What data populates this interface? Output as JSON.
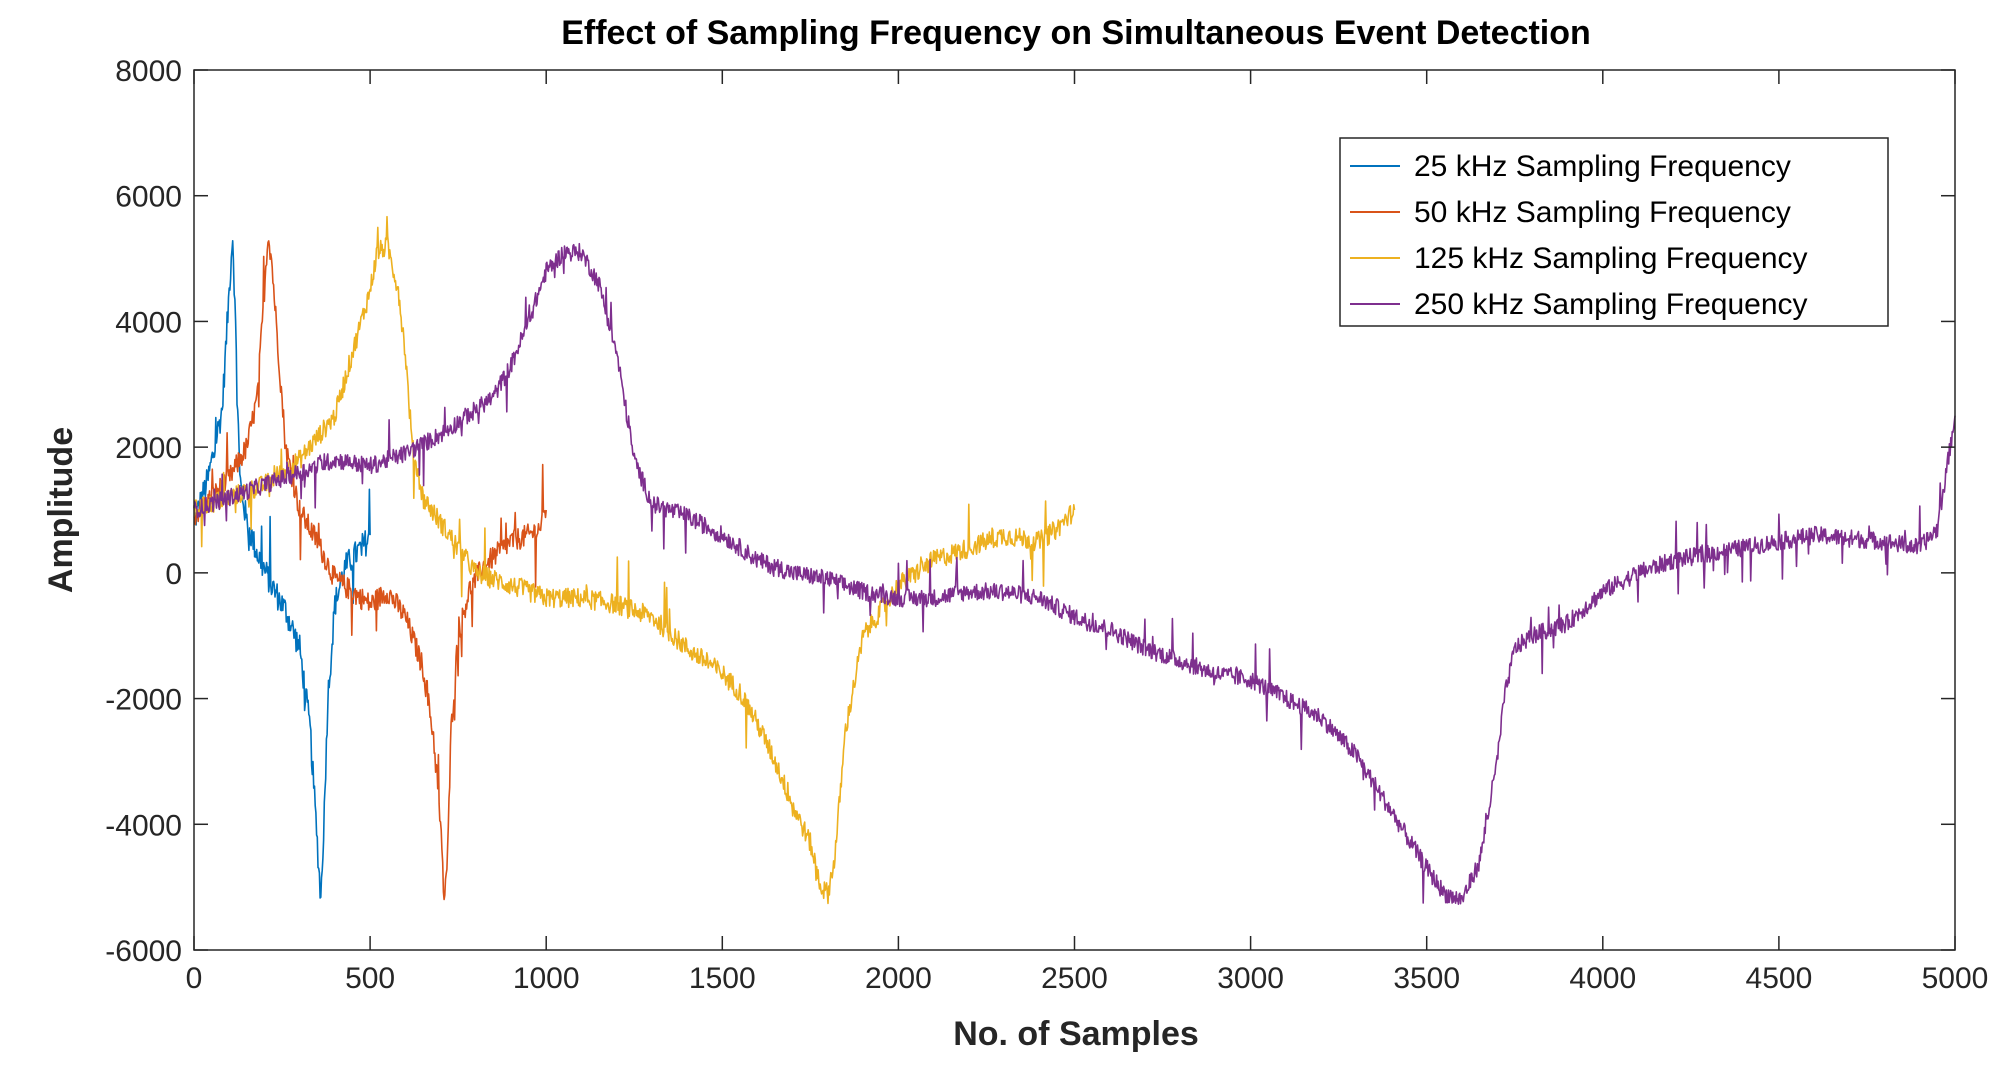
{
  "chart_data": {
    "type": "line",
    "title": "Effect of Sampling Frequency on Simultaneous Event Detection",
    "xlabel": "No. of Samples",
    "ylabel": "Amplitude",
    "xlim": [
      0,
      5000
    ],
    "ylim": [
      -6000,
      8000
    ],
    "xticks": [
      0,
      500,
      1000,
      1500,
      2000,
      2500,
      3000,
      3500,
      4000,
      4500,
      5000
    ],
    "xtick_labels": [
      "0",
      "500",
      "1000",
      "1500",
      "2000",
      "2500",
      "3000",
      "3500",
      "4000",
      "4500",
      "5000"
    ],
    "yticks": [
      -6000,
      -4000,
      -2000,
      0,
      2000,
      4000,
      6000,
      8000
    ],
    "ytick_labels": [
      "-6000",
      "-4000",
      "-2000",
      "0",
      "2000",
      "4000",
      "6000",
      "8000"
    ],
    "grid": false,
    "legend_position": "top-right",
    "series": [
      {
        "name": "25 kHz Sampling Frequency",
        "color": "#0072BD",
        "x": [
          0,
          40,
          80,
          100,
          110,
          120,
          130,
          150,
          180,
          220,
          260,
          300,
          330,
          350,
          360,
          370,
          380,
          400,
          430,
          460,
          490,
          500
        ],
        "y": [
          800,
          1500,
          2600,
          4500,
          5400,
          3500,
          1500,
          800,
          300,
          -200,
          -600,
          -1200,
          -2500,
          -4300,
          -5200,
          -3800,
          -2000,
          -500,
          100,
          300,
          500,
          600
        ],
        "noise": 220
      },
      {
        "name": "50 kHz Sampling Frequency",
        "color": "#D95319",
        "x": [
          0,
          50,
          100,
          150,
          180,
          200,
          210,
          220,
          240,
          260,
          300,
          350,
          400,
          450,
          500,
          550,
          600,
          650,
          680,
          700,
          710,
          720,
          730,
          750,
          780,
          820,
          860,
          900,
          950,
          980,
          1000
        ],
        "y": [
          900,
          1200,
          1500,
          2000,
          2800,
          4500,
          5400,
          5000,
          3500,
          2000,
          1000,
          500,
          -100,
          -300,
          -500,
          -300,
          -700,
          -1500,
          -2600,
          -4000,
          -5200,
          -4500,
          -2500,
          -1000,
          -300,
          100,
          300,
          500,
          600,
          700,
          1000
        ],
        "noise": 180
      },
      {
        "name": "125 kHz Sampling Frequency",
        "color": "#EDB120",
        "x": [
          0,
          100,
          200,
          300,
          400,
          450,
          500,
          520,
          550,
          580,
          600,
          620,
          650,
          700,
          800,
          900,
          1000,
          1100,
          1200,
          1300,
          1400,
          1500,
          1550,
          1600,
          1650,
          1700,
          1750,
          1780,
          1800,
          1820,
          1850,
          1900,
          2000,
          2100,
          2200,
          2300,
          2400,
          2450,
          2500
        ],
        "y": [
          1000,
          1200,
          1400,
          1800,
          2500,
          3500,
          4500,
          5100,
          5200,
          4500,
          3500,
          2000,
          1200,
          800,
          0,
          -200,
          -400,
          -400,
          -500,
          -700,
          -1200,
          -1600,
          -1900,
          -2400,
          -3000,
          -3700,
          -4300,
          -5000,
          -5100,
          -4500,
          -2500,
          -1000,
          -200,
          200,
          400,
          600,
          500,
          700,
          1000
        ],
        "noise": 160
      },
      {
        "name": "250 kHz Sampling Frequency",
        "color": "#7E2F8E",
        "x": [
          0,
          100,
          200,
          300,
          400,
          500,
          600,
          700,
          800,
          850,
          900,
          950,
          1000,
          1050,
          1100,
          1150,
          1200,
          1250,
          1300,
          1400,
          1500,
          1600,
          1700,
          1800,
          1900,
          2000,
          2100,
          2200,
          2300,
          2400,
          2500,
          2600,
          2700,
          2800,
          2900,
          3000,
          3100,
          3200,
          3300,
          3400,
          3500,
          3550,
          3600,
          3650,
          3700,
          3720,
          3750,
          3800,
          3900,
          4000,
          4100,
          4200,
          4300,
          4400,
          4500,
          4600,
          4700,
          4800,
          4900,
          4950,
          5000
        ],
        "y": [
          1000,
          1200,
          1400,
          1600,
          1800,
          1700,
          1900,
          2200,
          2600,
          2800,
          3300,
          4000,
          4800,
          5100,
          5100,
          4600,
          3500,
          1800,
          1100,
          900,
          600,
          200,
          0,
          -100,
          -300,
          -400,
          -400,
          -300,
          -300,
          -400,
          -700,
          -900,
          -1200,
          -1400,
          -1600,
          -1700,
          -2000,
          -2300,
          -2900,
          -3800,
          -4700,
          -5100,
          -5200,
          -4600,
          -3000,
          -2000,
          -1200,
          -1000,
          -800,
          -300,
          0,
          200,
          300,
          400,
          500,
          600,
          550,
          500,
          400,
          700,
          2500
        ],
        "noise": 140
      }
    ]
  }
}
